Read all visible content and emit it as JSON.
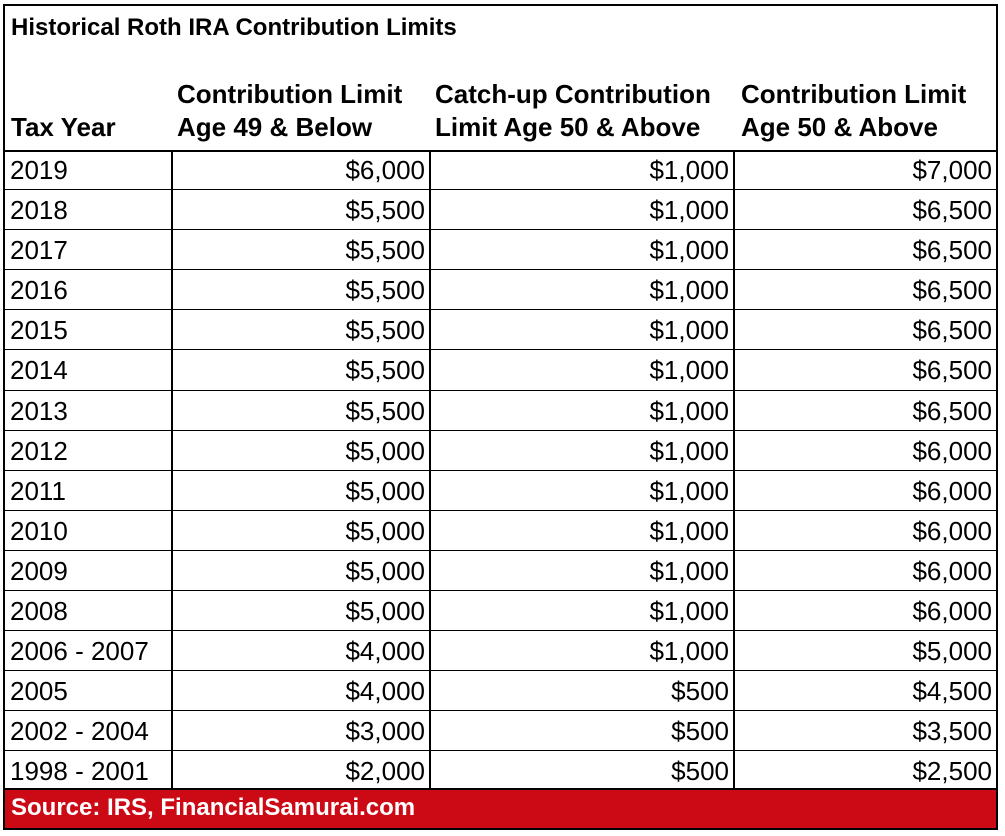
{
  "table": {
    "title": "Historical Roth IRA Contribution Limits",
    "headers": [
      [
        "Tax Year"
      ],
      [
        "Contribution Limit",
        "Age 49 & Below"
      ],
      [
        "Catch-up Contribution",
        "Limit Age 50 & Above"
      ],
      [
        "Contribution Limit",
        "Age 50 & Above"
      ]
    ],
    "rows": [
      [
        "2019",
        "$6,000",
        "$1,000",
        "$7,000"
      ],
      [
        "2018",
        "$5,500",
        "$1,000",
        "$6,500"
      ],
      [
        "2017",
        "$5,500",
        "$1,000",
        "$6,500"
      ],
      [
        "2016",
        "$5,500",
        "$1,000",
        "$6,500"
      ],
      [
        "2015",
        "$5,500",
        "$1,000",
        "$6,500"
      ],
      [
        "2014",
        "$5,500",
        "$1,000",
        "$6,500"
      ],
      [
        "2013",
        "$5,500",
        "$1,000",
        "$6,500"
      ],
      [
        "2012",
        "$5,000",
        "$1,000",
        "$6,000"
      ],
      [
        "2011",
        "$5,000",
        "$1,000",
        "$6,000"
      ],
      [
        "2010",
        "$5,000",
        "$1,000",
        "$6,000"
      ],
      [
        "2009",
        "$5,000",
        "$1,000",
        "$6,000"
      ],
      [
        "2008",
        "$5,000",
        "$1,000",
        "$6,000"
      ],
      [
        "2006 - 2007",
        "$4,000",
        "$1,000",
        "$5,000"
      ],
      [
        "2005",
        "$4,000",
        "$500",
        "$4,500"
      ],
      [
        "2002 - 2004",
        "$3,000",
        "$500",
        "$3,500"
      ],
      [
        "1998 - 2001",
        "$2,000",
        "$500",
        "$2,500"
      ]
    ],
    "source": "Source: IRS, FinancialSamurai.com",
    "footer_color": "#cc0a16"
  }
}
